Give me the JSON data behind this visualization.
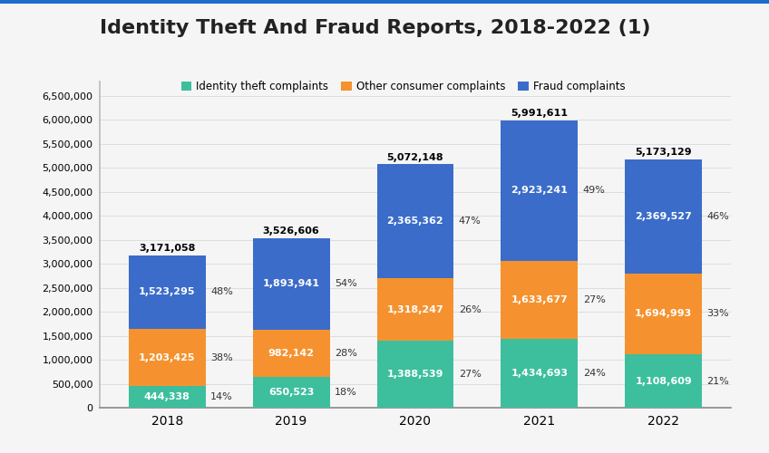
{
  "title": "Identity Theft And Fraud Reports, 2018-2022 (1)",
  "years": [
    "2018",
    "2019",
    "2020",
    "2021",
    "2022"
  ],
  "identity_theft": [
    444338,
    650523,
    1388539,
    1434693,
    1108609
  ],
  "other_consumer": [
    1203425,
    982142,
    1318247,
    1633677,
    1694993
  ],
  "fraud": [
    1523295,
    1893941,
    2365362,
    2923241,
    2369527
  ],
  "identity_theft_pct": [
    "14%",
    "18%",
    "27%",
    "24%",
    "21%"
  ],
  "other_consumer_pct": [
    "38%",
    "28%",
    "26%",
    "27%",
    "33%"
  ],
  "fraud_pct": [
    "48%",
    "54%",
    "47%",
    "49%",
    "46%"
  ],
  "totals": [
    3171058,
    3526606,
    5072148,
    5991611,
    5173129
  ],
  "color_identity": "#3dbf9e",
  "color_other": "#f5922f",
  "color_fraud": "#3b6cc9",
  "color_background": "#f5f5f5",
  "color_top_border": "#1a6dcc",
  "legend_labels": [
    "Identity theft complaints",
    "Other consumer complaints",
    "Fraud complaints"
  ],
  "ylabel_ticks": [
    0,
    500000,
    1000000,
    1500000,
    2000000,
    2500000,
    3000000,
    3500000,
    4000000,
    4500000,
    5000000,
    5500000,
    6000000,
    6500000
  ],
  "title_fontsize": 16,
  "bar_width": 0.62
}
